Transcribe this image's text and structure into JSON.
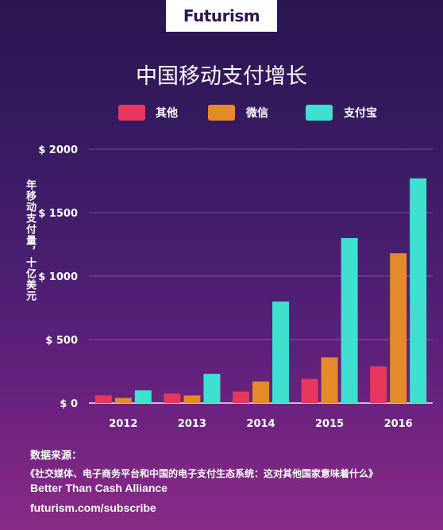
{
  "brand": "Futurism",
  "chart_data": {
    "type": "bar",
    "title": "中国移动支付增长",
    "ylabel": "年移动支付量，十亿美元",
    "xlabel": "",
    "categories": [
      "2012",
      "2013",
      "2014",
      "2015",
      "2016"
    ],
    "series": [
      {
        "name": "其他",
        "color": "#e6385f",
        "values": [
          60,
          75,
          90,
          190,
          290
        ]
      },
      {
        "name": "微信",
        "color": "#e58a2a",
        "values": [
          40,
          60,
          170,
          360,
          1180
        ]
      },
      {
        "name": "支付宝",
        "color": "#3fe0d0",
        "values": [
          100,
          230,
          800,
          1300,
          1770
        ]
      }
    ],
    "ylim": [
      0,
      2000
    ],
    "yticks": [
      0,
      500,
      1000,
      1500,
      2000
    ],
    "ytick_labels": [
      "$ 0",
      "$ 500",
      "$ 1000",
      "$ 1500",
      "$ 2000"
    ],
    "legend_position": "top",
    "grid": true
  },
  "footer": {
    "source_label": "数据来源：",
    "report": "《社交媒体、电子商务平台和中国的电子支付生态系统：这对其他国家意味着什么》",
    "org": "Better Than Cash Alliance",
    "url": "futurism.com/subscribe"
  }
}
